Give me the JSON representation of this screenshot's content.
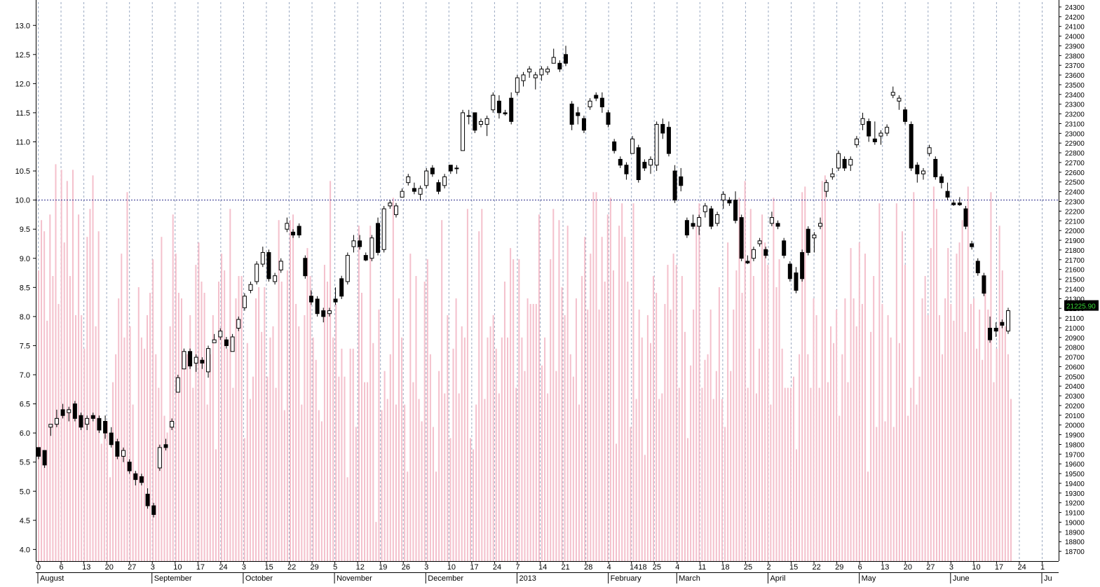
{
  "colors": {
    "background": "#ffffff",
    "volume_bar": "#f4c0cc",
    "bullish_candle": "#ffffff",
    "bearish_candle": "#000000",
    "reference_line": "#2a2a8a",
    "gridline": "#9aa8c0",
    "last_price_badge": "#000000",
    "last_price_text": "#37d637",
    "axis_text": "#000000"
  },
  "chart_data": {
    "type": "candlestick",
    "title": "",
    "y_left": {
      "range": [
        3.8,
        13.4
      ],
      "ticks": [
        "4.0",
        "4.5",
        "5.0",
        "5.5",
        "6.0",
        "6.5",
        "7.0",
        "7.5",
        "8.0",
        "8.5",
        "9.0",
        "9.5",
        "10.0",
        "10.5",
        "11.0",
        "11.5",
        "12.0",
        "12.5",
        "13.0"
      ]
    },
    "y_right": {
      "range": [
        18600,
        24350
      ],
      "ticks": [
        "18700",
        "18800",
        "18900",
        "19000",
        "19100",
        "19200",
        "19300",
        "19400",
        "19500",
        "19600",
        "19700",
        "19800",
        "19900",
        "20000",
        "20100",
        "20200",
        "20300",
        "20400",
        "20500",
        "20600",
        "20700",
        "20800",
        "20900",
        "21000",
        "21100",
        "21200",
        "21300",
        "21400",
        "21500",
        "21600",
        "21700",
        "21800",
        "21900",
        "22000",
        "22100",
        "22200",
        "22300",
        "22400",
        "22500",
        "22600",
        "22700",
        "22800",
        "22900",
        "23000",
        "23100",
        "23200",
        "23300",
        "23400",
        "23500",
        "23600",
        "23700",
        "23800",
        "23900",
        "24000",
        "24100",
        "24200",
        "24300"
      ]
    },
    "reference_line": {
      "value": 10.0
    },
    "last_price_label": "21225.90",
    "x_day_labels": [
      "0",
      "6",
      "13",
      "20",
      "27",
      "3",
      "10",
      "17",
      "24",
      "3",
      "15",
      "22",
      "29",
      "5",
      "12",
      "19",
      "26",
      "3",
      "10",
      "17",
      "24",
      "7",
      "14",
      "21",
      "28",
      "4",
      "1418",
      "25",
      "4",
      "11",
      "18",
      "25",
      "2",
      "15",
      "22",
      "29",
      "6",
      "13",
      "20",
      "27",
      "3",
      "10",
      "17",
      "24",
      "1"
    ],
    "x_month_labels": [
      "August",
      "September",
      "October",
      "November",
      "December",
      "2013",
      "February",
      "March",
      "April",
      "May",
      "June",
      "Ju"
    ],
    "volume_heights_pct": [
      52,
      61,
      59,
      43,
      62,
      51,
      71,
      46,
      70,
      57,
      68,
      51,
      70,
      44,
      62,
      44,
      38,
      58,
      63,
      69,
      42,
      59,
      21,
      24,
      25,
      15,
      32,
      37,
      47,
      55,
      40,
      66,
      42,
      28,
      16,
      49,
      40,
      38,
      44,
      48,
      54,
      37,
      31,
      58,
      26,
      23,
      42,
      62,
      55,
      48,
      47,
      35,
      37,
      44,
      31,
      53,
      57,
      50,
      48,
      28,
      37,
      44,
      20,
      50,
      55,
      52,
      38,
      63,
      31,
      47,
      51,
      51,
      22,
      39,
      29,
      33,
      47,
      49,
      41,
      49,
      33,
      40,
      42,
      31,
      61,
      50,
      27,
      52,
      61,
      62,
      46,
      42,
      28,
      44,
      56,
      51,
      40,
      36,
      27,
      25,
      53,
      50,
      68,
      40,
      46,
      33,
      38,
      33,
      15,
      38,
      38,
      24,
      60,
      48,
      32,
      32,
      60,
      39,
      7,
      45,
      27,
      34,
      29,
      37,
      65,
      28,
      47,
      40,
      28,
      16,
      55,
      32,
      51,
      29,
      25,
      50,
      54,
      37,
      24,
      16,
      34,
      61,
      30,
      44,
      22,
      38,
      47,
      30,
      42,
      40,
      63,
      22,
      20,
      28,
      59,
      63,
      29,
      40,
      42,
      44,
      38,
      30,
      40,
      50,
      40,
      56,
      54,
      31,
      54,
      40,
      34,
      47,
      46,
      46,
      46,
      62,
      35,
      40,
      30,
      54,
      63,
      34,
      61,
      49,
      44,
      60,
      37,
      33,
      47,
      28,
      51,
      58,
      45,
      55,
      66,
      66,
      45,
      58,
      50,
      62,
      65,
      52,
      21,
      60,
      64,
      58,
      50,
      24,
      64,
      29,
      45,
      40,
      19,
      44,
      39,
      51,
      48,
      29,
      30,
      46,
      53,
      45,
      55,
      53,
      31,
      51,
      41,
      22,
      35,
      45,
      60,
      64,
      31,
      36,
      37,
      45,
      29,
      34,
      49,
      29,
      24,
      57,
      34,
      45,
      52,
      65,
      48,
      68,
      31,
      63,
      51,
      30,
      38,
      62,
      57,
      53,
      28,
      65,
      49,
      54,
      38,
      31,
      31,
      31,
      33,
      20,
      37,
      66,
      67,
      37,
      31,
      47,
      44,
      31,
      68,
      69,
      32,
      42,
      39,
      45,
      26,
      37,
      47,
      32,
      56,
      47,
      42,
      57,
      46,
      55,
      16,
      41,
      51,
      24,
      64,
      46,
      25,
      44,
      40,
      24,
      64,
      39,
      59,
      53,
      26,
      31,
      66,
      28,
      33,
      47,
      51,
      44,
      56,
      67,
      63,
      44,
      37,
      47,
      56,
      46,
      43,
      55,
      57,
      61,
      41,
      67,
      46,
      47,
      38,
      45,
      36,
      51,
      45,
      66,
      32,
      38,
      60,
      52,
      42,
      37,
      29
    ],
    "candles": [
      [
        5.75,
        5.75,
        5.55,
        5.6
      ],
      [
        5.7,
        5.7,
        5.4,
        5.45
      ],
      [
        6.1,
        6.15,
        5.95,
        6.15
      ],
      [
        6.15,
        6.4,
        6.1,
        6.25
      ],
      [
        6.4,
        6.5,
        6.25,
        6.3
      ],
      [
        6.35,
        6.45,
        6.2,
        6.4
      ],
      [
        6.5,
        6.55,
        6.2,
        6.25
      ],
      [
        6.3,
        6.35,
        6.05,
        6.1
      ],
      [
        6.15,
        6.3,
        6.05,
        6.25
      ],
      [
        6.3,
        6.35,
        6.2,
        6.25
      ],
      [
        6.25,
        6.3,
        6.0,
        6.05
      ],
      [
        6.2,
        6.3,
        5.9,
        6.0
      ],
      [
        6.0,
        6.1,
        5.75,
        5.8
      ],
      [
        5.85,
        5.9,
        5.55,
        5.6
      ],
      [
        5.6,
        5.75,
        5.5,
        5.7
      ],
      [
        5.5,
        5.55,
        5.3,
        5.35
      ],
      [
        5.3,
        5.35,
        5.1,
        5.2
      ],
      [
        5.25,
        5.3,
        5.1,
        5.15
      ],
      [
        4.95,
        5.05,
        4.7,
        4.75
      ],
      [
        4.75,
        4.8,
        4.55,
        4.6
      ],
      [
        5.4,
        5.8,
        5.35,
        5.75
      ],
      [
        5.8,
        5.9,
        5.7,
        5.75
      ],
      [
        6.1,
        6.25,
        6.05,
        6.2
      ],
      [
        6.7,
        7.0,
        6.7,
        6.95
      ],
      [
        7.1,
        7.45,
        7.1,
        7.4
      ],
      [
        7.4,
        7.45,
        7.1,
        7.15
      ],
      [
        7.2,
        7.35,
        7.05,
        7.3
      ],
      [
        7.25,
        7.3,
        7.1,
        7.2
      ],
      [
        7.05,
        7.5,
        6.95,
        7.45
      ],
      [
        7.55,
        7.7,
        7.55,
        7.6
      ],
      [
        7.65,
        7.8,
        7.6,
        7.75
      ],
      [
        7.6,
        7.65,
        7.45,
        7.5
      ],
      [
        7.4,
        7.7,
        7.4,
        7.65
      ],
      [
        7.8,
        8.0,
        7.75,
        7.95
      ],
      [
        8.15,
        8.4,
        8.1,
        8.35
      ],
      [
        8.45,
        8.6,
        8.4,
        8.55
      ],
      [
        8.6,
        8.95,
        8.55,
        8.9
      ],
      [
        8.9,
        9.2,
        8.85,
        9.1
      ],
      [
        9.1,
        9.15,
        8.6,
        8.65
      ],
      [
        8.6,
        8.75,
        8.55,
        8.7
      ],
      [
        8.8,
        9.0,
        8.75,
        8.95
      ],
      [
        9.5,
        9.7,
        9.45,
        9.6
      ],
      [
        9.45,
        9.5,
        9.35,
        9.4
      ],
      [
        9.55,
        9.6,
        9.35,
        9.4
      ],
      [
        9.0,
        9.05,
        8.65,
        8.7
      ],
      [
        8.35,
        8.45,
        8.2,
        8.25
      ],
      [
        8.3,
        8.35,
        8.0,
        8.05
      ],
      [
        8.1,
        8.15,
        7.9,
        8.0
      ],
      [
        8.05,
        8.15,
        8.0,
        8.1
      ],
      [
        8.3,
        8.5,
        8.2,
        8.25
      ],
      [
        8.65,
        8.7,
        8.3,
        8.35
      ],
      [
        8.6,
        9.1,
        8.55,
        9.05
      ],
      [
        9.2,
        9.4,
        9.1,
        9.3
      ],
      [
        9.3,
        9.4,
        9.15,
        9.2
      ],
      [
        9.05,
        9.1,
        8.95,
        8.97
      ],
      [
        9.0,
        9.4,
        8.95,
        9.35
      ],
      [
        9.6,
        9.7,
        9.05,
        9.1
      ],
      [
        9.15,
        9.9,
        9.1,
        9.85
      ],
      [
        9.9,
        10.0,
        9.85,
        9.95
      ],
      [
        9.75,
        9.95,
        9.7,
        9.9
      ],
      [
        10.05,
        10.2,
        10.05,
        10.15
      ],
      [
        10.3,
        10.45,
        10.25,
        10.4
      ],
      [
        10.2,
        10.3,
        10.1,
        10.15
      ],
      [
        10.1,
        10.25,
        10.0,
        10.2
      ],
      [
        10.25,
        10.55,
        10.2,
        10.5
      ],
      [
        10.55,
        10.6,
        10.4,
        10.45
      ],
      [
        10.3,
        10.35,
        10.1,
        10.15
      ],
      [
        10.25,
        10.45,
        10.2,
        10.4
      ],
      [
        10.6,
        10.6,
        10.45,
        10.5
      ],
      [
        10.55,
        10.6,
        10.45,
        10.55
      ],
      [
        10.85,
        11.55,
        10.85,
        11.5
      ],
      [
        11.45,
        11.55,
        11.3,
        11.45
      ],
      [
        11.5,
        11.5,
        11.15,
        11.2
      ],
      [
        11.3,
        11.4,
        11.25,
        11.35
      ],
      [
        11.3,
        11.45,
        11.1,
        11.4
      ],
      [
        11.55,
        11.85,
        11.5,
        11.8
      ],
      [
        11.7,
        11.8,
        11.4,
        11.5
      ],
      [
        11.5,
        11.55,
        11.45,
        11.48
      ],
      [
        11.75,
        11.85,
        11.3,
        11.35
      ],
      [
        11.85,
        12.15,
        11.8,
        12.1
      ],
      [
        12.05,
        12.2,
        11.95,
        12.15
      ],
      [
        12.2,
        12.3,
        12.1,
        12.25
      ],
      [
        12.1,
        12.2,
        11.9,
        12.15
      ],
      [
        12.15,
        12.3,
        12.05,
        12.25
      ],
      [
        12.2,
        12.3,
        12.15,
        12.25
      ],
      [
        12.35,
        12.6,
        12.35,
        12.45
      ],
      [
        12.35,
        12.4,
        12.2,
        12.25
      ],
      [
        12.5,
        12.65,
        12.3,
        12.35
      ],
      [
        11.65,
        11.7,
        11.2,
        11.3
      ],
      [
        11.5,
        11.6,
        11.3,
        11.45
      ],
      [
        11.4,
        11.45,
        11.15,
        11.2
      ],
      [
        11.6,
        11.75,
        11.55,
        11.7
      ],
      [
        11.8,
        11.85,
        11.7,
        11.75
      ],
      [
        11.75,
        11.85,
        11.5,
        11.6
      ],
      [
        11.5,
        11.55,
        11.25,
        11.3
      ],
      [
        11.0,
        11.05,
        10.8,
        10.85
      ],
      [
        10.7,
        10.75,
        10.55,
        10.6
      ],
      [
        10.6,
        10.65,
        10.35,
        10.45
      ],
      [
        10.8,
        11.1,
        10.8,
        11.05
      ],
      [
        10.9,
        10.95,
        10.3,
        10.35
      ],
      [
        10.65,
        10.7,
        10.5,
        10.55
      ],
      [
        10.6,
        10.75,
        10.45,
        10.7
      ],
      [
        10.6,
        11.35,
        10.5,
        11.3
      ],
      [
        11.3,
        11.4,
        11.05,
        11.15
      ],
      [
        11.25,
        11.35,
        10.75,
        10.8
      ],
      [
        10.5,
        10.6,
        9.95,
        10.0
      ],
      [
        10.4,
        10.55,
        10.15,
        10.25
      ],
      [
        9.65,
        9.7,
        9.35,
        9.4
      ],
      [
        9.6,
        9.75,
        9.5,
        9.55
      ],
      [
        9.55,
        9.75,
        9.4,
        9.7
      ],
      [
        9.8,
        9.95,
        9.7,
        9.9
      ],
      [
        9.85,
        9.9,
        9.5,
        9.55
      ],
      [
        9.6,
        9.8,
        9.55,
        9.75
      ],
      [
        10.0,
        10.15,
        9.85,
        10.1
      ],
      [
        10.0,
        10.05,
        9.9,
        9.95
      ],
      [
        10.0,
        10.15,
        9.6,
        9.65
      ],
      [
        9.7,
        9.75,
        8.95,
        9.0
      ],
      [
        8.95,
        9.05,
        8.9,
        8.92
      ],
      [
        9.0,
        9.2,
        8.95,
        9.15
      ],
      [
        9.25,
        9.35,
        9.2,
        9.3
      ],
      [
        9.15,
        9.2,
        9.0,
        9.05
      ],
      [
        9.6,
        9.8,
        9.55,
        9.7
      ],
      [
        9.6,
        9.65,
        9.5,
        9.55
      ],
      [
        9.3,
        9.35,
        9.0,
        9.05
      ],
      [
        8.9,
        8.95,
        8.6,
        8.65
      ],
      [
        8.75,
        8.85,
        8.4,
        8.45
      ],
      [
        9.1,
        9.15,
        8.6,
        8.65
      ],
      [
        9.5,
        9.55,
        9.05,
        9.1
      ],
      [
        9.35,
        9.45,
        9.1,
        9.4
      ],
      [
        9.55,
        9.7,
        9.5,
        9.6
      ],
      [
        10.15,
        10.35,
        10.05,
        10.3
      ],
      [
        10.4,
        10.55,
        10.35,
        10.45
      ],
      [
        10.55,
        10.85,
        10.5,
        10.8
      ],
      [
        10.7,
        10.75,
        10.5,
        10.55
      ],
      [
        10.6,
        10.75,
        10.5,
        10.7
      ],
      [
        10.95,
        11.1,
        10.9,
        11.05
      ],
      [
        11.3,
        11.5,
        11.2,
        11.4
      ],
      [
        11.35,
        11.4,
        11.0,
        11.1
      ],
      [
        11.05,
        11.35,
        10.95,
        11.0
      ],
      [
        11.1,
        11.2,
        10.95,
        11.15
      ],
      [
        11.15,
        11.3,
        11.1,
        11.25
      ],
      [
        11.8,
        11.95,
        11.75,
        11.85
      ],
      [
        11.7,
        11.8,
        11.55,
        11.75
      ],
      [
        11.55,
        11.6,
        11.3,
        11.35
      ],
      [
        11.3,
        11.35,
        10.5,
        10.55
      ],
      [
        10.6,
        10.65,
        10.3,
        10.45
      ],
      [
        10.45,
        10.55,
        10.35,
        10.5
      ],
      [
        10.8,
        10.95,
        10.75,
        10.9
      ],
      [
        10.7,
        10.75,
        10.35,
        10.4
      ],
      [
        10.4,
        10.45,
        10.2,
        10.3
      ],
      [
        10.15,
        10.3,
        10.0,
        10.05
      ],
      [
        9.95,
        10.0,
        9.9,
        9.92
      ],
      [
        9.95,
        10.05,
        9.9,
        9.92
      ],
      [
        9.85,
        9.9,
        9.5,
        9.55
      ],
      [
        9.25,
        9.3,
        9.15,
        9.2
      ],
      [
        8.95,
        9.0,
        8.7,
        8.75
      ],
      [
        8.7,
        8.75,
        8.35,
        8.4
      ],
      [
        7.8,
        8.0,
        7.55,
        7.6
      ],
      [
        7.8,
        7.9,
        7.65,
        7.75
      ],
      [
        7.9,
        7.95,
        7.8,
        7.85
      ],
      [
        7.75,
        8.15,
        7.7,
        8.1
      ]
    ]
  }
}
